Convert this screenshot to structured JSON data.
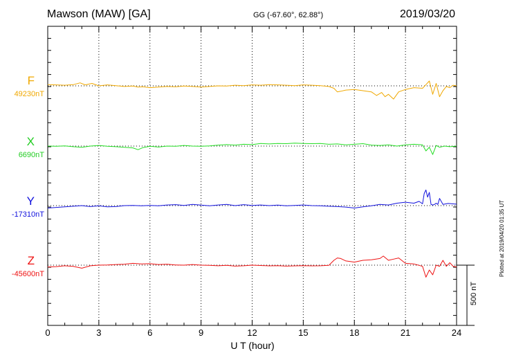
{
  "header": {
    "station": "Mawson (MAW)  [GA]",
    "coords": "GG (-67.60°,  62.88°)",
    "date": "2019/03/20"
  },
  "footer": {
    "plotted": "Plotted at 2019/04/20 01:35 UT",
    "scale_label": "500 nT"
  },
  "chart_data": {
    "type": "line",
    "xlabel": "U T (hour)",
    "xlim": [
      0,
      24
    ],
    "xticks": [
      0,
      3,
      6,
      9,
      12,
      15,
      18,
      21,
      24
    ],
    "x_grid": "dotted vertical every 3 hours",
    "scale_nT": 500,
    "series": [
      {
        "name": "F",
        "baseline_label": "49230nT",
        "baseline": 49230,
        "color": "#f0a800",
        "x": [
          0,
          0.5,
          1,
          1.5,
          1.9,
          2.2,
          2.6,
          3,
          3.5,
          4,
          4.5,
          5,
          5.3,
          5.6,
          6,
          6.5,
          7,
          7.5,
          8,
          8.5,
          9,
          9.5,
          10,
          10.5,
          11,
          11.5,
          12,
          12.5,
          13,
          13.5,
          14,
          14.5,
          15,
          15.5,
          16,
          16.5,
          16.8,
          17,
          17.2,
          17.5,
          18,
          18.5,
          19,
          19.3,
          19.6,
          19.8,
          20,
          20.3,
          20.6,
          21,
          21.5,
          22,
          22.2,
          22.4,
          22.6,
          22.8,
          23,
          23.2,
          23.4,
          23.6,
          23.8,
          24
        ],
        "y": [
          49240,
          49238,
          49235,
          49240,
          49255,
          49238,
          49250,
          49230,
          49238,
          49232,
          49225,
          49228,
          49220,
          49222,
          49215,
          49220,
          49225,
          49222,
          49228,
          49225,
          49220,
          49225,
          49230,
          49228,
          49235,
          49232,
          49238,
          49235,
          49240,
          49238,
          49235,
          49232,
          49238,
          49235,
          49232,
          49225,
          49210,
          49180,
          49185,
          49195,
          49200,
          49190,
          49180,
          49150,
          49175,
          49140,
          49160,
          49120,
          49180,
          49200,
          49215,
          49210,
          49240,
          49270,
          49160,
          49250,
          49140,
          49190,
          49225,
          49215,
          49235,
          49230
        ]
      },
      {
        "name": "X",
        "baseline_label": "6690nT",
        "baseline": 6690,
        "color": "#22dd22",
        "x": [
          0,
          0.5,
          1,
          1.5,
          2,
          2.5,
          3,
          3.5,
          4,
          4.5,
          5,
          5.3,
          5.6,
          6,
          6.5,
          7,
          7.5,
          8,
          8.5,
          9,
          9.5,
          10,
          10.5,
          11,
          11.5,
          12,
          12.5,
          13,
          13.5,
          14,
          14.5,
          15,
          15.5,
          16,
          16.5,
          17,
          17.5,
          18,
          18.5,
          19,
          19.5,
          20,
          20.5,
          21,
          21.5,
          22,
          22.2,
          22.4,
          22.6,
          22.8,
          23,
          23.3,
          23.6,
          24
        ],
        "y": [
          6690,
          6688,
          6692,
          6685,
          6680,
          6690,
          6695,
          6688,
          6685,
          6680,
          6675,
          6660,
          6678,
          6688,
          6682,
          6690,
          6688,
          6695,
          6690,
          6688,
          6692,
          6698,
          6702,
          6698,
          6705,
          6702,
          6712,
          6708,
          6712,
          6710,
          6715,
          6712,
          6710,
          6712,
          6705,
          6708,
          6700,
          6705,
          6710,
          6698,
          6695,
          6700,
          6690,
          6700,
          6705,
          6700,
          6650,
          6680,
          6620,
          6695,
          6680,
          6690,
          6685,
          6690
        ]
      },
      {
        "name": "Y",
        "baseline_label": "-17310nT",
        "baseline": -17310,
        "color": "#1010dd",
        "x": [
          0,
          0.5,
          1,
          1.5,
          2,
          2.5,
          3,
          3.5,
          4,
          4.5,
          5,
          5.5,
          6,
          6.5,
          7,
          7.5,
          8,
          8.5,
          9,
          9.5,
          10,
          10.5,
          11,
          11.5,
          12,
          12.5,
          13,
          13.5,
          14,
          14.5,
          15,
          15.5,
          16,
          16.5,
          17,
          17.5,
          18,
          18.5,
          19,
          19.5,
          20,
          20.5,
          21,
          21.5,
          21.8,
          22,
          22.1,
          22.2,
          22.3,
          22.4,
          22.5,
          22.6,
          22.7,
          22.8,
          22.9,
          23,
          23.2,
          23.5,
          24
        ],
        "y": [
          -17330,
          -17325,
          -17320,
          -17315,
          -17310,
          -17318,
          -17312,
          -17320,
          -17318,
          -17310,
          -17308,
          -17312,
          -17308,
          -17312,
          -17305,
          -17302,
          -17308,
          -17300,
          -17306,
          -17312,
          -17305,
          -17300,
          -17310,
          -17302,
          -17308,
          -17305,
          -17310,
          -17306,
          -17312,
          -17308,
          -17305,
          -17310,
          -17312,
          -17315,
          -17318,
          -17322,
          -17330,
          -17320,
          -17312,
          -17300,
          -17305,
          -17290,
          -17282,
          -17290,
          -17275,
          -17295,
          -17210,
          -17180,
          -17240,
          -17200,
          -17300,
          -17305,
          -17300,
          -17290,
          -17300,
          -17250,
          -17300,
          -17292,
          -17298
        ]
      },
      {
        "name": "Z",
        "baseline_label": "-45600nT",
        "baseline": -45600,
        "color": "#ee1111",
        "x": [
          0,
          0.5,
          1,
          1.5,
          2,
          2.5,
          3,
          3.5,
          4,
          4.5,
          5,
          5.5,
          6,
          6.5,
          7,
          7.5,
          8,
          8.5,
          9,
          9.5,
          10,
          10.5,
          11,
          11.5,
          12,
          12.5,
          13,
          13.5,
          14,
          14.5,
          15,
          15.5,
          16,
          16.5,
          16.8,
          17,
          17.2,
          17.5,
          18,
          18.5,
          19,
          19.5,
          19.7,
          20,
          20.3,
          20.6,
          21,
          21.5,
          22,
          22.2,
          22.4,
          22.6,
          22.8,
          23,
          23.2,
          23.4,
          23.6,
          23.8,
          24
        ],
        "y": [
          -45615,
          -45612,
          -45605,
          -45610,
          -45625,
          -45605,
          -45600,
          -45598,
          -45595,
          -45592,
          -45585,
          -45590,
          -45588,
          -45595,
          -45592,
          -45598,
          -45600,
          -45595,
          -45600,
          -45602,
          -45605,
          -45602,
          -45608,
          -45605,
          -45600,
          -45603,
          -45606,
          -45604,
          -45608,
          -45606,
          -45604,
          -45606,
          -45605,
          -45602,
          -45560,
          -45540,
          -45545,
          -45565,
          -45575,
          -45560,
          -45555,
          -45545,
          -45525,
          -45560,
          -45550,
          -45540,
          -45585,
          -45590,
          -45610,
          -45700,
          -45640,
          -45680,
          -45600,
          -45610,
          -45560,
          -45610,
          -45580,
          -45610,
          -45615
        ]
      }
    ]
  }
}
